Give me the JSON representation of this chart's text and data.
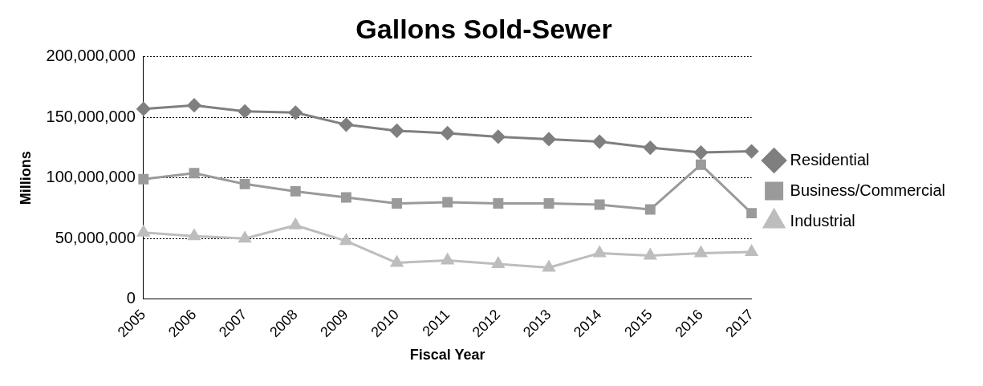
{
  "chart_data": {
    "type": "line",
    "title": "Gallons Sold-Sewer",
    "xlabel": "Fiscal Year",
    "ylabel": "Millions",
    "categories": [
      "2005",
      "2006",
      "2007",
      "2008",
      "2009",
      "2010",
      "2011",
      "2012",
      "2013",
      "2014",
      "2015",
      "2016",
      "2017"
    ],
    "series": [
      {
        "name": "Residential",
        "color": "#7f7f7f",
        "marker": "diamond",
        "values": [
          157000000,
          160000000,
          155000000,
          154000000,
          144000000,
          139000000,
          137000000,
          134000000,
          132000000,
          130000000,
          125000000,
          121000000,
          122000000
        ]
      },
      {
        "name": "Business/Commercial",
        "color": "#9a9a9a",
        "marker": "square",
        "values": [
          99000000,
          104000000,
          95000000,
          89000000,
          84000000,
          79000000,
          80000000,
          79000000,
          79000000,
          78000000,
          74000000,
          111000000,
          71000000
        ]
      },
      {
        "name": "Industrial",
        "color": "#bdbdbd",
        "marker": "triangle",
        "values": [
          55000000,
          52000000,
          50000000,
          61000000,
          48000000,
          30000000,
          32000000,
          29000000,
          26000000,
          38000000,
          36000000,
          38000000,
          39000000
        ]
      }
    ],
    "ylim": [
      0,
      200000000
    ],
    "yticks": [
      0,
      {
        "value": 50000000,
        "label": "50,000,000"
      },
      {
        "value": 100000000,
        "label": "100,000,000"
      },
      {
        "value": 150000000,
        "label": "150,000,000"
      },
      {
        "value": 200000000,
        "label": "200,000,000"
      }
    ],
    "grid": "y",
    "legend": "right"
  }
}
